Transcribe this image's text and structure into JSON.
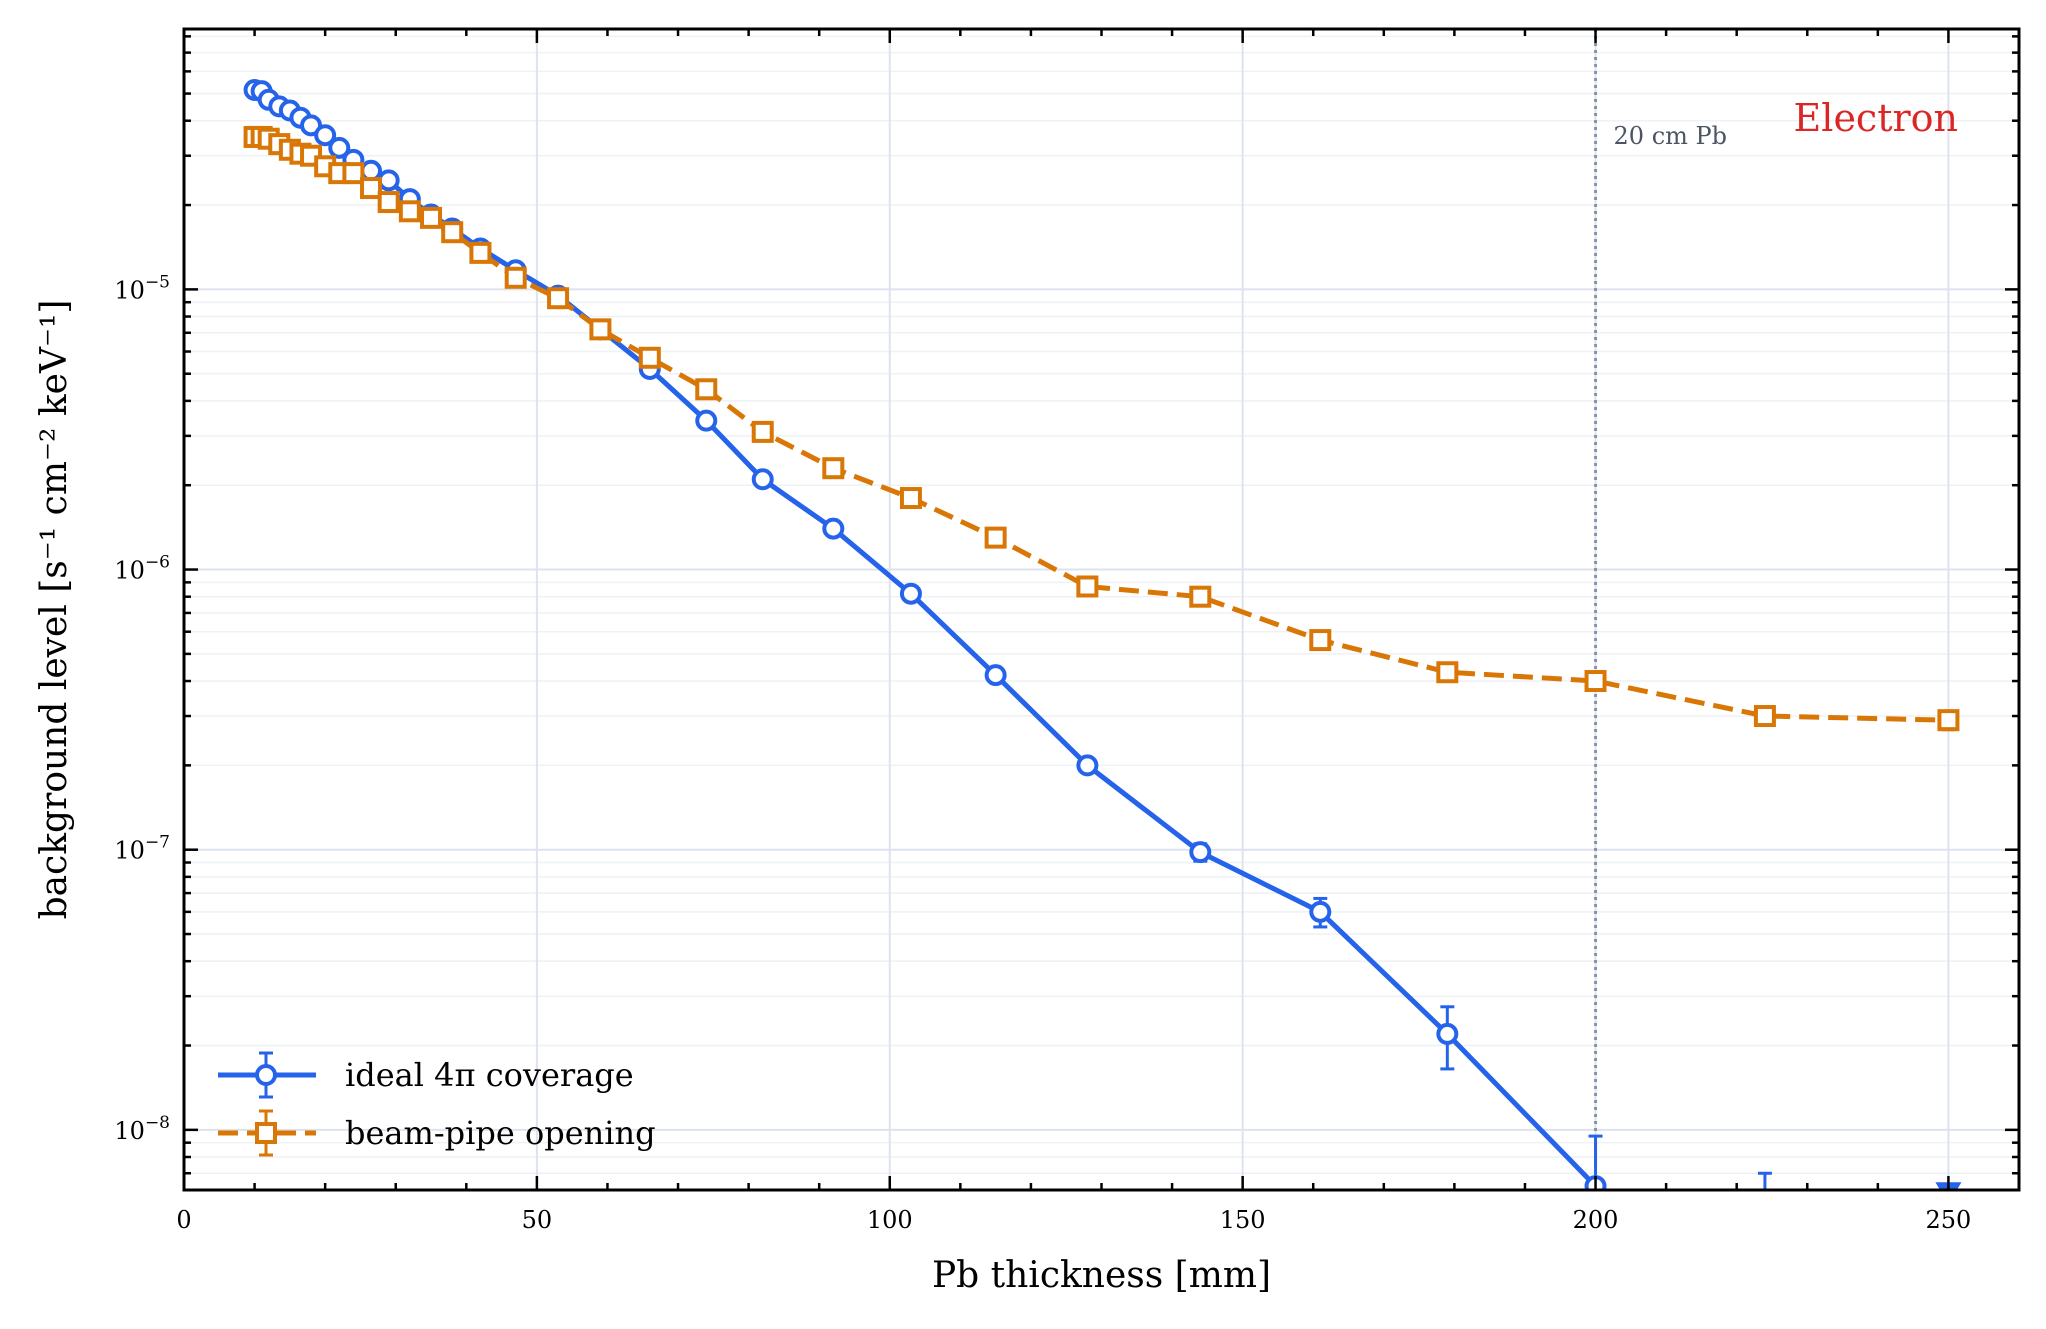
{
  "chart_data": {
    "type": "line",
    "title": "",
    "xlabel": "Pb thickness [mm]",
    "ylabel": "background level [s⁻¹ cm⁻² keV⁻¹]",
    "xlim": [
      0,
      260
    ],
    "ylim": [
      6.1e-09,
      8.5e-05
    ],
    "yscale": "log",
    "x_ticks": [
      0,
      50,
      100,
      150,
      200,
      250
    ],
    "y_ticks": [
      {
        "value": 1e-08,
        "label": "10",
        "exp": "−8"
      },
      {
        "value": 1e-07,
        "label": "10",
        "exp": "−7"
      },
      {
        "value": 1e-06,
        "label": "10",
        "exp": "−6"
      },
      {
        "value": 1e-05,
        "label": "10",
        "exp": "−5"
      }
    ],
    "grid": true,
    "legend_position": "bottom-left",
    "colors": {
      "ideal": "#2563eb",
      "beampipe": "#d97706",
      "annotation": "#dc2626",
      "vline": "#8a94a6",
      "vline_text": "#4b5563"
    },
    "series": [
      {
        "name": "ideal 4π coverage",
        "marker": "circle",
        "linestyle": "solid",
        "x": [
          10,
          11,
          12,
          13.5,
          15,
          16.5,
          18,
          20,
          22,
          24,
          26.5,
          29,
          32,
          35,
          38,
          42,
          47,
          53,
          59,
          66,
          74,
          82,
          92,
          103,
          115,
          128,
          144,
          161,
          179,
          200
        ],
        "y": [
          5.15e-05,
          5.1e-05,
          4.75e-05,
          4.5e-05,
          4.35e-05,
          4.1e-05,
          3.85e-05,
          3.55e-05,
          3.2e-05,
          2.9e-05,
          2.65e-05,
          2.45e-05,
          2.1e-05,
          1.85e-05,
          1.65e-05,
          1.4e-05,
          1.17e-05,
          9.5e-06,
          7.2e-06,
          5.2e-06,
          3.4e-06,
          2.1e-06,
          1.4e-06,
          8.2e-07,
          4.2e-07,
          2e-07,
          9.8e-08,
          6e-08,
          2.2e-08,
          6.3e-09
        ],
        "yerr": [
          0,
          0,
          0,
          0,
          0,
          0,
          0,
          0,
          0,
          0,
          0,
          0,
          0,
          0,
          0,
          0,
          0,
          0,
          0,
          0,
          0,
          0,
          0,
          0,
          0,
          0,
          7e-09,
          7e-09,
          5.5e-09,
          3.2e-09
        ],
        "upper_limits": [
          {
            "x": 224,
            "y": 7e-09
          },
          {
            "x": 250,
            "y": 6.5e-09
          }
        ]
      },
      {
        "name": "beam-pipe opening",
        "marker": "square",
        "linestyle": "dashed",
        "x": [
          10,
          11,
          12,
          13.5,
          15,
          16.5,
          18,
          20,
          22,
          24,
          26.5,
          29,
          32,
          35,
          38,
          42,
          47,
          53,
          59,
          66,
          74,
          82,
          92,
          103,
          115,
          128,
          144,
          161,
          179,
          200,
          224,
          250
        ],
        "y": [
          3.5e-05,
          3.5e-05,
          3.45e-05,
          3.3e-05,
          3.15e-05,
          3.05e-05,
          3e-05,
          2.75e-05,
          2.6e-05,
          2.6e-05,
          2.3e-05,
          2.05e-05,
          1.9e-05,
          1.8e-05,
          1.6e-05,
          1.35e-05,
          1.1e-05,
          9.3e-06,
          7.2e-06,
          5.7e-06,
          4.4e-06,
          3.1e-06,
          2.3e-06,
          1.8e-06,
          1.3e-06,
          8.7e-07,
          8e-07,
          5.6e-07,
          4.3e-07,
          4e-07,
          3e-07,
          2.9e-07
        ],
        "yerr": [
          0,
          0,
          0,
          0,
          0,
          0,
          0,
          0,
          0,
          0,
          0,
          0,
          0,
          0,
          0,
          0,
          0,
          0,
          0,
          0,
          0,
          0,
          0,
          0,
          0,
          0,
          0,
          0,
          0,
          2.5e-08,
          2.2e-08,
          2.2e-08
        ]
      }
    ],
    "vertical_line": {
      "x": 200,
      "label": "20 cm Pb"
    },
    "annotation": "Electron"
  }
}
